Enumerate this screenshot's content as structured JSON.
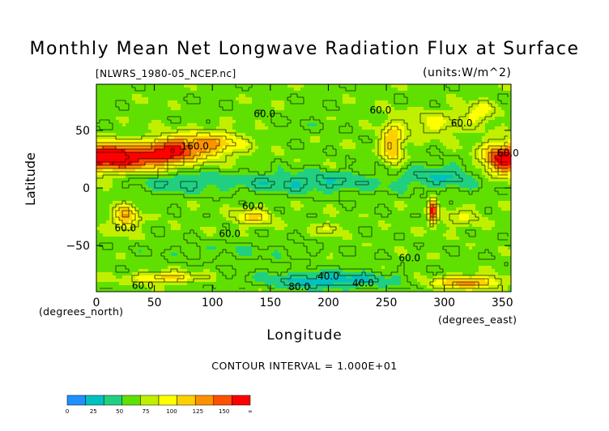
{
  "chart_data": {
    "type": "heatmap",
    "title": "Monthly Mean Net Longwave Radiation Flux at Surface",
    "subtitle_left": "[NLWRS_1980-05_NCEP.nc]",
    "subtitle_right": "(units:W/m^2)",
    "xlabel": "Longitude",
    "ylabel": "Latitude",
    "x_unit_label": "(degrees_east)",
    "y_unit_label": "(degrees_north)",
    "xlim": [
      0,
      357.5
    ],
    "ylim": [
      -90,
      90
    ],
    "x_ticks": [
      0,
      50,
      100,
      150,
      200,
      250,
      300,
      350
    ],
    "y_ticks": [
      -50,
      0,
      50
    ],
    "contour_interval_label": "CONTOUR INTERVAL = 1.000E+01",
    "contour_labels": [
      {
        "text": "60.0",
        "x": 145,
        "y": 64
      },
      {
        "text": "60.0",
        "x": 245,
        "y": 67
      },
      {
        "text": "60.0",
        "x": 315,
        "y": 56
      },
      {
        "text": "60.0",
        "x": 355,
        "y": 30
      },
      {
        "text": "160.0",
        "x": 85,
        "y": 36
      },
      {
        "text": "60.0",
        "x": 25,
        "y": -35
      },
      {
        "text": "60.0",
        "x": 135,
        "y": -16
      },
      {
        "text": "60.0",
        "x": 115,
        "y": -40
      },
      {
        "text": "60.0",
        "x": 270,
        "y": -61
      },
      {
        "text": "40.0",
        "x": 200,
        "y": -77
      },
      {
        "text": "40.0",
        "x": 230,
        "y": -83
      },
      {
        "text": "60.0",
        "x": 40,
        "y": -85
      },
      {
        "text": "80.0",
        "x": 175,
        "y": -86
      }
    ],
    "blobs": [
      {
        "lon": 30,
        "lat": 25,
        "rx": 40,
        "ry": 12,
        "v": 150
      },
      {
        "lon": 65,
        "lat": 33,
        "rx": 25,
        "ry": 12,
        "v": 145
      },
      {
        "lon": 100,
        "lat": 38,
        "rx": 28,
        "ry": 12,
        "v": 120
      },
      {
        "lon": 15,
        "lat": 30,
        "rx": 20,
        "ry": 10,
        "v": 125
      },
      {
        "lon": 350,
        "lat": 25,
        "rx": 18,
        "ry": 15,
        "v": 145
      },
      {
        "lon": 255,
        "lat": 38,
        "rx": 10,
        "ry": 18,
        "v": 125
      },
      {
        "lon": 290,
        "lat": -20,
        "rx": 4,
        "ry": 12,
        "v": 155
      },
      {
        "lon": 25,
        "lat": -25,
        "rx": 12,
        "ry": 12,
        "v": 120
      },
      {
        "lon": 135,
        "lat": -25,
        "rx": 18,
        "ry": 8,
        "v": 105
      },
      {
        "lon": 290,
        "lat": 55,
        "rx": 30,
        "ry": 12,
        "v": 90
      },
      {
        "lon": 330,
        "lat": 65,
        "rx": 15,
        "ry": 10,
        "v": 95
      },
      {
        "lon": 200,
        "lat": -35,
        "rx": 10,
        "ry": 6,
        "v": 95
      },
      {
        "lon": 315,
        "lat": -25,
        "rx": 20,
        "ry": 10,
        "v": 85
      },
      {
        "lon": 180,
        "lat": 55,
        "rx": 40,
        "ry": 8,
        "v": 60
      },
      {
        "lon": 180,
        "lat": 5,
        "rx": 80,
        "ry": 10,
        "v": 35
      },
      {
        "lon": 300,
        "lat": 10,
        "rx": 40,
        "ry": 12,
        "v": 38
      },
      {
        "lon": 70,
        "lat": 5,
        "rx": 40,
        "ry": 10,
        "v": 40
      },
      {
        "lon": 120,
        "lat": -55,
        "rx": 80,
        "ry": 10,
        "v": 55
      },
      {
        "lon": 200,
        "lat": -80,
        "rx": 60,
        "ry": 8,
        "v": 25
      },
      {
        "lon": 320,
        "lat": -82,
        "rx": 30,
        "ry": 6,
        "v": 130
      },
      {
        "lon": 60,
        "lat": -78,
        "rx": 30,
        "ry": 5,
        "v": 115
      }
    ],
    "background_value": 65,
    "colorbar": {
      "colors": [
        "#1e90ff",
        "#00c0c0",
        "#20d080",
        "#60e000",
        "#c0f000",
        "#ffff00",
        "#ffd000",
        "#ff9000",
        "#ff5000",
        "#ff0000"
      ],
      "labels": [
        "0",
        "25",
        "50",
        "75",
        "100",
        "125",
        "150",
        "∞"
      ],
      "range": [
        0,
        175
      ]
    }
  }
}
